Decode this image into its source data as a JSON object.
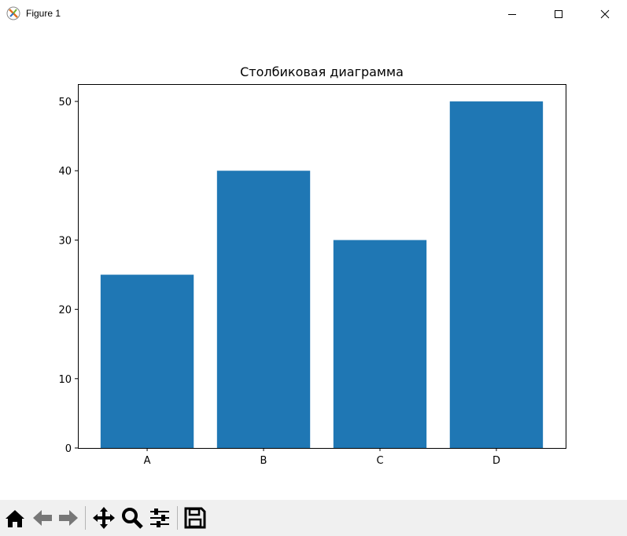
{
  "window": {
    "title": "Figure 1",
    "controls": [
      "minimize-icon",
      "maximize-icon",
      "close-icon"
    ]
  },
  "toolbar": {
    "buttons": [
      "home-icon",
      "back-icon",
      "forward-icon",
      "pan-icon",
      "zoom-icon",
      "configure-subplots-icon",
      "save-icon"
    ]
  },
  "chart_data": {
    "type": "bar",
    "title": "Столбиковая диаграмма",
    "categories": [
      "A",
      "B",
      "C",
      "D"
    ],
    "values": [
      25,
      40,
      30,
      50
    ],
    "xlabel": "",
    "ylabel": "",
    "ylim": [
      0,
      52.5
    ],
    "yticks": [
      0,
      10,
      20,
      30,
      40,
      50
    ],
    "grid": false,
    "bar_color": "#1f77b4"
  }
}
